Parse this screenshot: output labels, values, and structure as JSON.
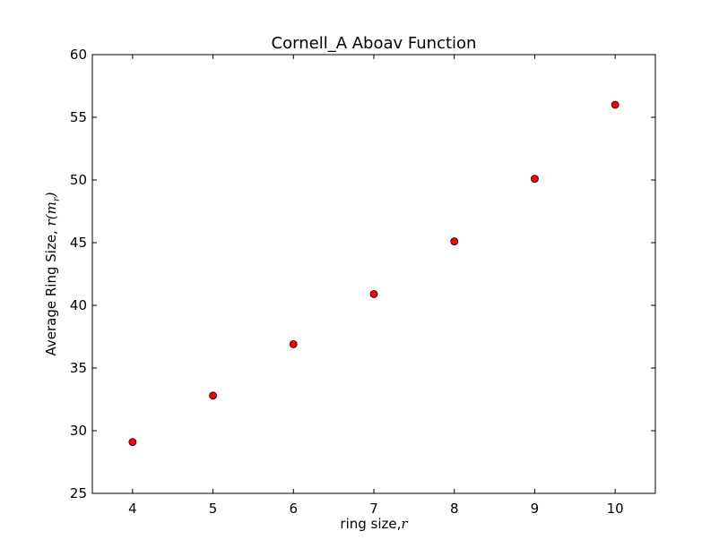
{
  "chart_data": {
    "type": "scatter",
    "title": "Cornell_A Aboav Function",
    "xlabel_text": "ring size,",
    "xlabel_math": "r",
    "ylabel_text": "Average Ring Size, ",
    "ylabel_math_r": "r(m",
    "ylabel_math_sub": "r",
    "ylabel_math_close": ")",
    "xlim": [
      3.5,
      10.5
    ],
    "ylim": [
      25,
      60
    ],
    "xticks": [
      4,
      5,
      6,
      7,
      8,
      9,
      10
    ],
    "yticks": [
      25,
      30,
      35,
      40,
      45,
      50,
      55,
      60
    ],
    "grid": false,
    "marker_color": "#ff0000",
    "marker_edge": "#000000",
    "points": [
      {
        "x": 4,
        "y": 29.1
      },
      {
        "x": 5,
        "y": 32.8
      },
      {
        "x": 6,
        "y": 36.9
      },
      {
        "x": 7,
        "y": 40.9
      },
      {
        "x": 8,
        "y": 45.1
      },
      {
        "x": 9,
        "y": 50.1
      },
      {
        "x": 10,
        "y": 56.0
      }
    ]
  }
}
